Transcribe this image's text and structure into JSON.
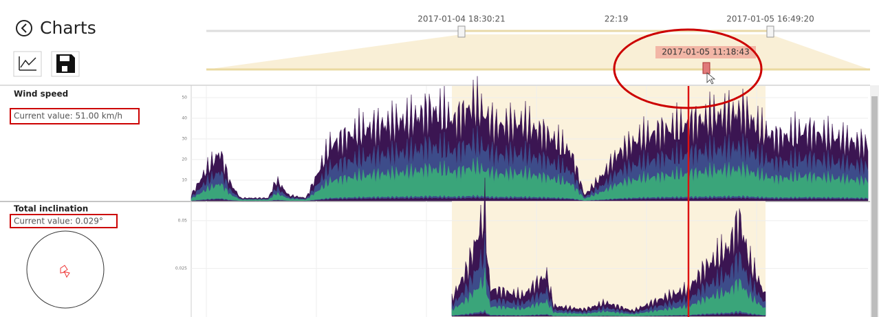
{
  "header": {
    "title": "Charts"
  },
  "timeline": {
    "range_start": "2017-01-04 18:30:21",
    "span": "22:19",
    "range_end": "2017-01-05 16:49:20",
    "cursor": "2017-01-05 11:18:43"
  },
  "panels": [
    {
      "title": "Wind speed",
      "current_value": "Current value: 51.00 km/h",
      "ylim": [
        0,
        55
      ],
      "yticks": [
        10,
        20,
        30,
        40,
        50
      ]
    },
    {
      "title": "Total inclination",
      "current_value": "Current value: 0.029°",
      "ylim": [
        0,
        0.0575
      ],
      "yticks": [
        0.025,
        0.05
      ]
    }
  ]
}
